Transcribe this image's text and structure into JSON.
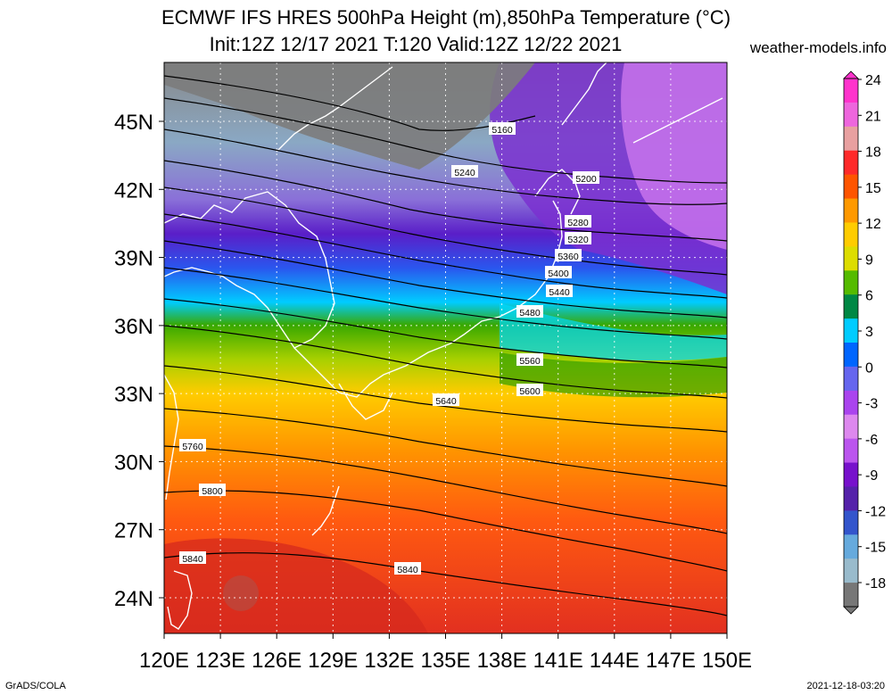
{
  "title_line1": "ECMWF IFS HRES 500hPa Height (m),850hPa Temperature (°C)",
  "title_line2": "Init:12Z 12/17 2021 T:120 Valid:12Z 12/22 2021",
  "site": "weather-models.info",
  "footer_left": "GrADS/COLA",
  "footer_right": "2021-12-18-03:20",
  "map": {
    "lat_ticks": [
      {
        "value": 45,
        "label": "45N"
      },
      {
        "value": 42,
        "label": "42N"
      },
      {
        "value": 39,
        "label": "39N"
      },
      {
        "value": 36,
        "label": "36N"
      },
      {
        "value": 33,
        "label": "33N"
      },
      {
        "value": 30,
        "label": "30N"
      },
      {
        "value": 27,
        "label": "27N"
      },
      {
        "value": 24,
        "label": "24N"
      }
    ],
    "lon_ticks": [
      {
        "value": 120,
        "label": "120E"
      },
      {
        "value": 123,
        "label": "123E"
      },
      {
        "value": 126,
        "label": "126E"
      },
      {
        "value": 129,
        "label": "129E"
      },
      {
        "value": 132,
        "label": "132E"
      },
      {
        "value": 135,
        "label": "135E"
      },
      {
        "value": 138,
        "label": "138E"
      },
      {
        "value": 141,
        "label": "141E"
      },
      {
        "value": 144,
        "label": "144E"
      },
      {
        "value": 147,
        "label": "147E"
      },
      {
        "value": 150,
        "label": "150E"
      }
    ],
    "contour_labels": [
      "5160",
      "5240",
      "5200",
      "5280",
      "5320",
      "5360",
      "5400",
      "5440",
      "5480",
      "5560",
      "5600",
      "5640",
      "5760",
      "5800",
      "5840",
      "5840"
    ]
  },
  "colorbar": {
    "labels": [
      "24",
      "21",
      "18",
      "15",
      "12",
      "9",
      "6",
      "3",
      "0",
      "-3",
      "-6",
      "-9",
      "-12",
      "-15",
      "-18"
    ],
    "colors": [
      "#ff33cc",
      "#ee66dd",
      "#e8a0a0",
      "#ff2a2a",
      "#ff5500",
      "#ff9900",
      "#ffcc00",
      "#dddd00",
      "#55bb00",
      "#008844",
      "#00ccff",
      "#0066ff",
      "#6666ee",
      "#aa44ee",
      "#dd88ee",
      "#bb55ee",
      "#7711cc",
      "#5522aa",
      "#3355cc",
      "#66aadd",
      "#99bbcc",
      "#777777"
    ]
  }
}
